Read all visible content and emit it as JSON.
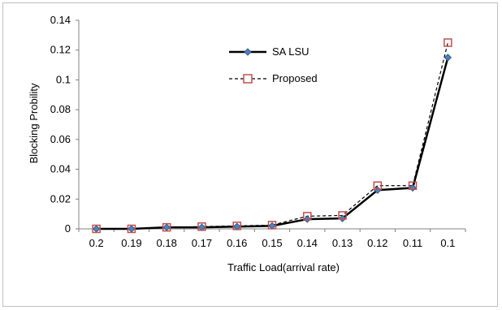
{
  "chart_data": {
    "type": "line",
    "title": "",
    "xlabel": "Traffic Load(arrival rate)",
    "ylabel": "Blocking Probility",
    "categories": [
      "0.2",
      "0.19",
      "0.18",
      "0.17",
      "0.16",
      "0.15",
      "0.14",
      "0.13",
      "0.12",
      "0.11",
      "0.1"
    ],
    "y_ticks": [
      "0",
      "0.02",
      "0.04",
      "0.06",
      "0.08",
      "0.1",
      "0.12",
      "0.14"
    ],
    "ylim": [
      0,
      0.14
    ],
    "grid": false,
    "legend_position": "top-center",
    "series": [
      {
        "name": "SA LSU",
        "line_style": "solid",
        "marker": "diamond",
        "color": "#000000",
        "marker_color": "#4f81bd",
        "values": [
          0.0,
          0.0,
          0.001,
          0.001,
          0.0015,
          0.002,
          0.0065,
          0.007,
          0.026,
          0.0275,
          0.115
        ]
      },
      {
        "name": "Proposed",
        "line_style": "dashed",
        "marker": "square",
        "color": "#000000",
        "marker_color": "#c0504d",
        "values": [
          0.0,
          0.0,
          0.001,
          0.0015,
          0.002,
          0.0025,
          0.0085,
          0.009,
          0.029,
          0.029,
          0.125
        ]
      }
    ]
  }
}
